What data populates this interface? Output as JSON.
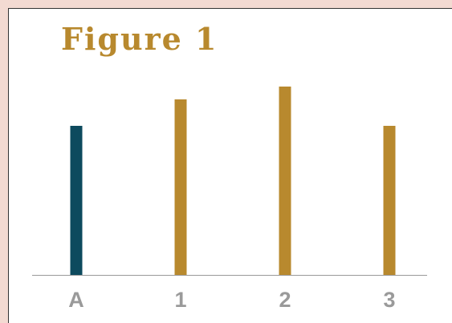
{
  "chart_data": {
    "type": "bar",
    "title": "Figure 1",
    "categories": [
      "A",
      "1",
      "2",
      "3"
    ],
    "values": [
      186,
      219,
      235,
      186
    ],
    "colors": [
      "#0d4a5e",
      "#b8892e",
      "#b8892e",
      "#b8892e"
    ],
    "ylim": [
      0,
      250
    ]
  }
}
